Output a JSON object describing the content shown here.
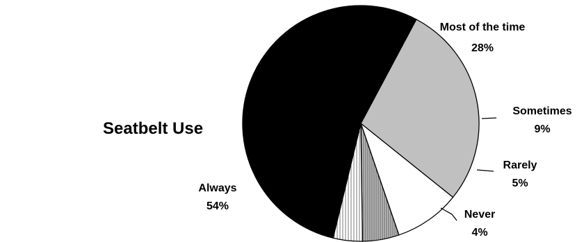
{
  "chart_data": {
    "type": "pie",
    "title": "Seatbelt Use",
    "start_angle_deg": 28,
    "direction": "clockwise",
    "slices": [
      {
        "label": "Most of the time",
        "value": 28,
        "pct_label": "28%",
        "color": "#c0c0c0",
        "pattern": "solid"
      },
      {
        "label": "Sometimes",
        "value": 9,
        "pct_label": "9%",
        "color": "#ffffff",
        "pattern": "solid"
      },
      {
        "label": "Rarely",
        "value": 5,
        "pct_label": "5%",
        "color": "#a6a6a6",
        "pattern": "vertical-lines-dense"
      },
      {
        "label": "Never",
        "value": 4,
        "pct_label": "4%",
        "color": "#ffffff",
        "pattern": "vertical-lines-sparse"
      },
      {
        "label": "Always",
        "value": 54,
        "pct_label": "54%",
        "color": "#000000",
        "pattern": "solid"
      }
    ],
    "legend": "none"
  }
}
